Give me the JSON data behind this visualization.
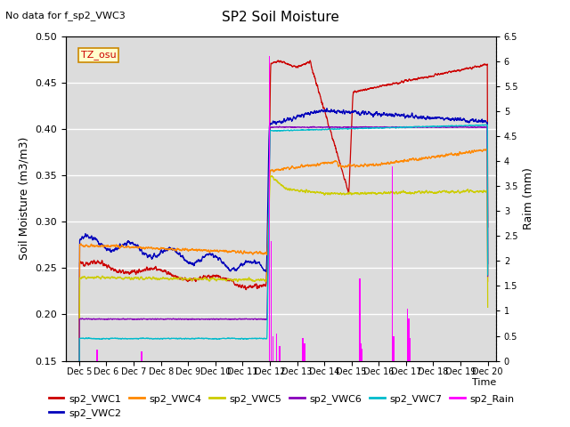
{
  "title": "SP2 Soil Moisture",
  "no_data_text": "No data for f_sp2_VWC3",
  "tz_label": "TZ_osu",
  "ylabel_left": "Soil Moisture (m3/m3)",
  "ylabel_right": "Raim (mm)",
  "xlabel": "Time",
  "ylim_left": [
    0.15,
    0.5
  ],
  "ylim_right": [
    0.0,
    6.5
  ],
  "yticks_left": [
    0.15,
    0.2,
    0.25,
    0.3,
    0.35,
    0.4,
    0.45,
    0.5
  ],
  "yticks_right": [
    0.0,
    0.5,
    1.0,
    1.5,
    2.0,
    2.5,
    3.0,
    3.5,
    4.0,
    4.5,
    5.0,
    5.5,
    6.0,
    6.5
  ],
  "bg_color": "#dcdcdc",
  "colors": {
    "VWC1": "#cc0000",
    "VWC2": "#0000bb",
    "VWC4": "#ff8800",
    "VWC5": "#cccc00",
    "VWC6": "#8800bb",
    "VWC7": "#00bbcc",
    "Rain": "#ff00ff"
  },
  "x_ticks": [
    5,
    6,
    7,
    8,
    9,
    10,
    11,
    12,
    13,
    14,
    15,
    16,
    17,
    18,
    19,
    20
  ],
  "x_tick_labels": [
    "Dec 5",
    "Dec 6",
    "Dec 7",
    "Dec 8",
    "Dec 9",
    "Dec 10",
    "Dec 11",
    "Dec 12",
    "Dec 13",
    "Dec 14",
    "Dec 15",
    "Dec 16",
    "Dec 17",
    "Dec 18",
    "Dec 19",
    "Dec 20"
  ],
  "xlim": [
    4.5,
    20.3
  ],
  "rain_times": [
    5.65,
    7.3,
    11.98,
    12.05,
    12.12,
    12.25,
    12.35,
    13.22,
    13.27,
    15.3,
    15.35,
    15.38,
    16.5,
    16.55,
    17.05,
    17.1,
    17.15
  ],
  "rain_vals": [
    0.22,
    0.18,
    6.1,
    2.4,
    0.5,
    0.55,
    0.3,
    0.45,
    0.35,
    1.65,
    0.35,
    0.25,
    3.9,
    0.5,
    1.05,
    0.85,
    0.45
  ]
}
